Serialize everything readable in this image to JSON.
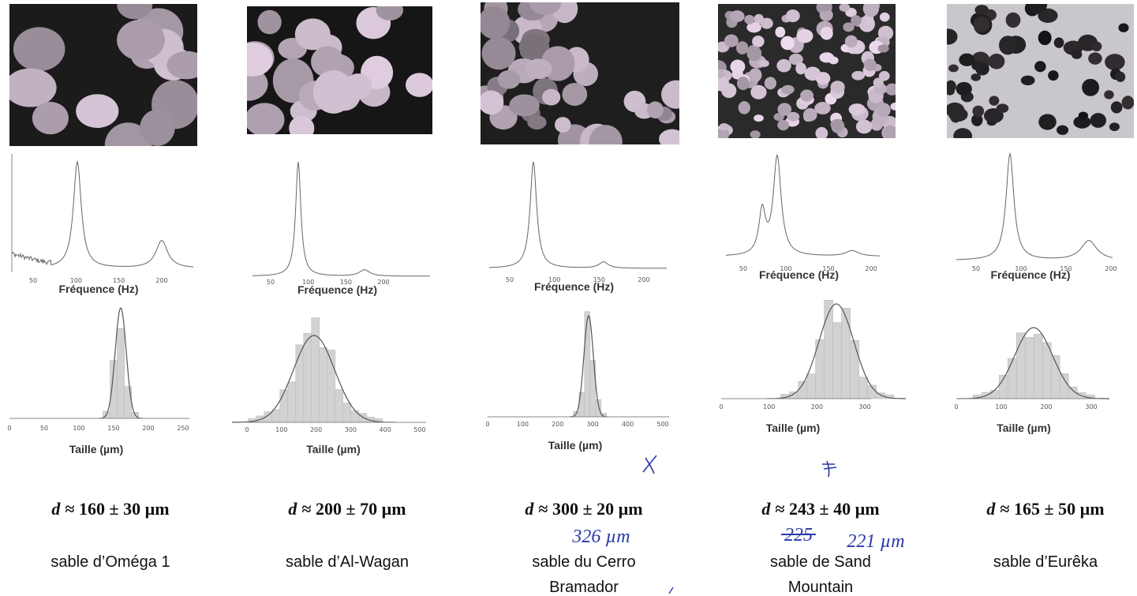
{
  "panels": [
    {
      "spectrum": {
        "xticks": [
          50,
          100,
          150,
          200
        ],
        "xlabel": "Fréquence (Hz)"
      },
      "histogram": {
        "xticks": [
          0,
          50,
          100,
          150,
          200,
          250
        ],
        "xlabel": "Taille (µm)"
      },
      "symbol": "d",
      "formula": "≈ 160 ± 30 µm",
      "name": [
        "sable d’Oméga 1"
      ],
      "annotations": []
    },
    {
      "spectrum": {
        "xticks": [
          50,
          100,
          150,
          200
        ],
        "xlabel": "Fréquence (Hz)"
      },
      "histogram": {
        "xticks": [
          0,
          100,
          200,
          300,
          400,
          500
        ],
        "xlabel": "Taille (µm)"
      },
      "symbol": "d",
      "formula": "≈ 200 ± 70 µm",
      "name": [
        "sable d’Al-Wagan"
      ],
      "annotations": []
    },
    {
      "spectrum": {
        "xticks": [
          50,
          100,
          150,
          200
        ],
        "xlabel": "Fréquence (Hz)"
      },
      "histogram": {
        "xticks": [
          0,
          100,
          200,
          300,
          400,
          500
        ],
        "xlabel": "Taille (µm)"
      },
      "symbol": "d",
      "formula": "≈ 300 ± 20 µm",
      "name": [
        "sable du Cerro",
        "Bramador"
      ],
      "annotations": [
        "326 µm"
      ]
    },
    {
      "spectrum": {
        "xticks": [
          50,
          100,
          150,
          200
        ],
        "xlabel": "Fréquence (Hz)"
      },
      "histogram": {
        "xticks": [
          0,
          100,
          200,
          300
        ],
        "xlabel": "Taille (µm)"
      },
      "symbol": "d",
      "formula": "≈ 243 ± 40 µm",
      "name": [
        "sable de Sand",
        "Mountain"
      ],
      "annotations": [
        "225",
        "221 µm"
      ]
    },
    {
      "spectrum": {
        "xticks": [
          50,
          100,
          150,
          200
        ],
        "xlabel": "Fréquence (Hz)"
      },
      "histogram": {
        "xticks": [
          0,
          100,
          200,
          300
        ],
        "xlabel": "Taille (µm)"
      },
      "symbol": "d",
      "formula": "≈ 165 ± 50 µm",
      "name": [
        "sable d’Eurêka"
      ],
      "annotations": []
    }
  ]
}
